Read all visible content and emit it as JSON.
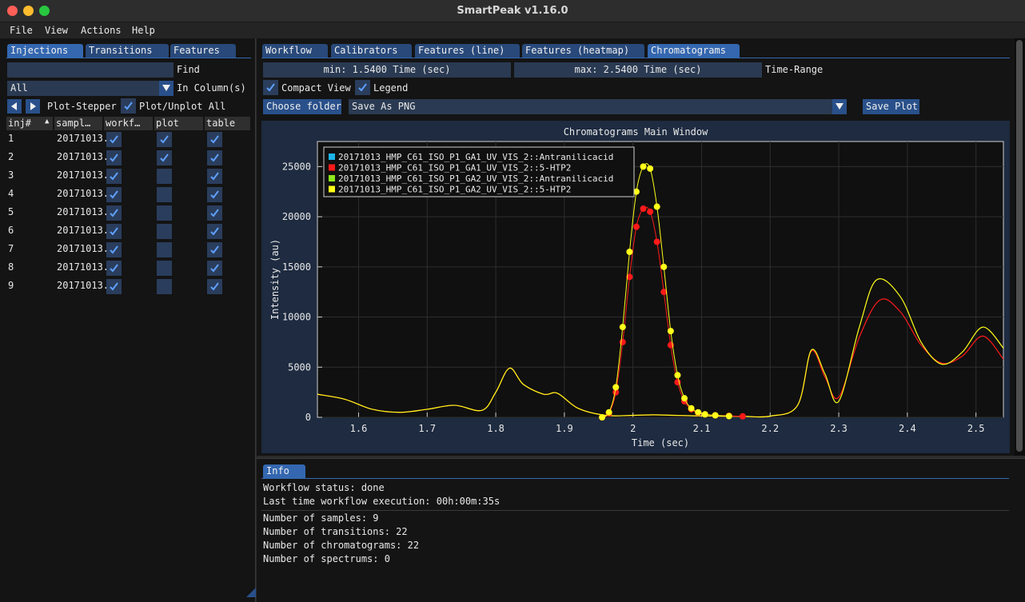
{
  "window": {
    "title": "SmartPeak v1.16.0"
  },
  "menu": [
    "File",
    "View",
    "Actions",
    "Help"
  ],
  "left": {
    "tabs": [
      "Injections",
      "Transitions",
      "Features"
    ],
    "find_label": "Find",
    "find_value": "",
    "column_select": "All",
    "column_label": "In Column(s)",
    "stepper_label": "Plot-Stepper",
    "plot_all_label": "Plot/Unplot All",
    "headers": [
      "inj#",
      "sampl…",
      "workf…",
      "plot",
      "table"
    ],
    "rows": [
      {
        "inj": "1",
        "sample": "20171013.",
        "workflow": true,
        "plot": true,
        "table": true
      },
      {
        "inj": "2",
        "sample": "20171013.",
        "workflow": true,
        "plot": true,
        "table": true
      },
      {
        "inj": "3",
        "sample": "20171013.",
        "workflow": true,
        "plot": false,
        "table": true
      },
      {
        "inj": "4",
        "sample": "20171013.",
        "workflow": true,
        "plot": false,
        "table": true
      },
      {
        "inj": "5",
        "sample": "20171013.",
        "workflow": true,
        "plot": false,
        "table": true
      },
      {
        "inj": "6",
        "sample": "20171013.",
        "workflow": true,
        "plot": false,
        "table": true
      },
      {
        "inj": "7",
        "sample": "20171013.",
        "workflow": true,
        "plot": false,
        "table": true
      },
      {
        "inj": "8",
        "sample": "20171013.",
        "workflow": true,
        "plot": false,
        "table": true
      },
      {
        "inj": "9",
        "sample": "20171013.",
        "workflow": true,
        "plot": false,
        "table": true
      }
    ]
  },
  "right": {
    "tabs": [
      "Workflow",
      "Calibrators",
      "Features (line)",
      "Features (heatmap)",
      "Chromatograms"
    ],
    "active_tab": "Chromatograms",
    "min_field": "min: 1.5400 Time (sec)",
    "max_field": "max: 2.5400 Time (sec)",
    "range_label": "Time-Range",
    "compact_view_label": "Compact View",
    "legend_label": "Legend",
    "choose_folder_label": "Choose folder",
    "save_as_value": "Save As PNG",
    "save_plot_label": "Save Plot"
  },
  "chart_data": {
    "type": "line",
    "title": "Chromatograms Main Window",
    "xlabel": "Time (sec)",
    "ylabel": "Intensity (au)",
    "xlim": [
      1.54,
      2.54
    ],
    "ylim": [
      0,
      27500
    ],
    "xticks": [
      1.6,
      1.7,
      1.8,
      1.9,
      2.0,
      2.1,
      2.2,
      2.3,
      2.4,
      2.5
    ],
    "xtick_labels": [
      "1.6",
      "1.7",
      "1.8",
      "1.9",
      "2",
      "2.1",
      "2.2",
      "2.3",
      "2.4",
      "2.5"
    ],
    "yticks": [
      0,
      5000,
      10000,
      15000,
      20000,
      25000
    ],
    "ytick_labels": [
      "0",
      "5000",
      "10000",
      "15000",
      "20000",
      "25000"
    ],
    "grid": true,
    "legend_position": "top-left",
    "series": [
      {
        "name": "20171013_HMP_C61_ISO_P1_GA1_UV_VIS_2::Antranilicacid",
        "color": "#1cb4e8",
        "style": "line",
        "x": [
          1.54,
          1.58,
          1.62,
          1.66,
          1.7,
          1.74,
          1.78,
          1.8,
          1.82,
          1.84,
          1.87,
          1.89,
          1.92,
          1.96,
          2.0,
          2.03,
          2.06,
          2.09,
          2.12,
          2.16,
          2.2,
          2.24,
          2.26,
          2.28,
          2.3,
          2.33,
          2.36,
          2.39,
          2.42,
          2.45,
          2.48,
          2.51,
          2.54
        ],
        "y": [
          2300,
          1800,
          800,
          500,
          800,
          1200,
          700,
          2500,
          4900,
          3300,
          2300,
          2400,
          900,
          200,
          200,
          250,
          200,
          150,
          120,
          100,
          120,
          1200,
          6600,
          4000,
          2000,
          8000,
          11700,
          10500,
          7200,
          5400,
          6100,
          8100,
          5800
        ]
      },
      {
        "name": "20171013_HMP_C61_ISO_P1_GA1_UV_VIS_2::5-HTP2",
        "color": "#ff1a1a",
        "style": "markers",
        "x": [
          1.955,
          1.965,
          1.975,
          1.985,
          1.995,
          2.005,
          2.015,
          2.025,
          2.035,
          2.045,
          2.055,
          2.065,
          2.075,
          2.085,
          2.095,
          2.105,
          2.12,
          2.14,
          2.16
        ],
        "y": [
          0,
          400,
          2500,
          7500,
          14000,
          19000,
          20800,
          20500,
          17500,
          12500,
          7200,
          3500,
          1600,
          800,
          450,
          300,
          200,
          150,
          100
        ]
      },
      {
        "name": "20171013_HMP_C61_ISO_P1_GA2_UV_VIS_2::Antranilicacid",
        "color": "#8ee81c",
        "style": "line",
        "x": [
          1.54,
          1.58,
          1.62,
          1.66,
          1.7,
          1.74,
          1.78,
          1.8,
          1.82,
          1.84,
          1.87,
          1.89,
          1.92,
          1.96,
          2.0,
          2.03,
          2.06,
          2.09,
          2.12,
          2.16,
          2.2,
          2.24,
          2.26,
          2.28,
          2.3,
          2.33,
          2.355,
          2.39,
          2.42,
          2.45,
          2.48,
          2.51,
          2.54
        ],
        "y": [
          2300,
          1800,
          800,
          500,
          800,
          1200,
          700,
          2500,
          4900,
          3300,
          2300,
          2400,
          900,
          200,
          200,
          250,
          200,
          150,
          120,
          100,
          120,
          1200,
          6700,
          4300,
          1600,
          9000,
          13700,
          12000,
          7500,
          5300,
          6500,
          9000,
          6900
        ]
      },
      {
        "name": "20171013_HMP_C61_ISO_P1_GA2_UV_VIS_2::5-HTP2",
        "color": "#ffff1a",
        "style": "markers",
        "x": [
          1.955,
          1.965,
          1.975,
          1.985,
          1.995,
          2.005,
          2.015,
          2.025,
          2.035,
          2.045,
          2.055,
          2.065,
          2.075,
          2.085,
          2.095,
          2.105,
          2.12,
          2.14
        ],
        "y": [
          0,
          500,
          3000,
          9000,
          16500,
          22500,
          25000,
          24800,
          21000,
          15000,
          8600,
          4200,
          1900,
          900,
          500,
          300,
          200,
          120
        ]
      }
    ]
  },
  "info": {
    "tab": "Info",
    "workflow_status": "Workflow status: done",
    "last_execution": "Last time workflow execution: 00h:00m:35s",
    "num_samples": "Number of samples: 9",
    "num_transitions": "Number of transitions: 22",
    "num_chromatograms": "Number of chromatograms: 22",
    "num_spectrums": "Number of spectrums: 0"
  }
}
